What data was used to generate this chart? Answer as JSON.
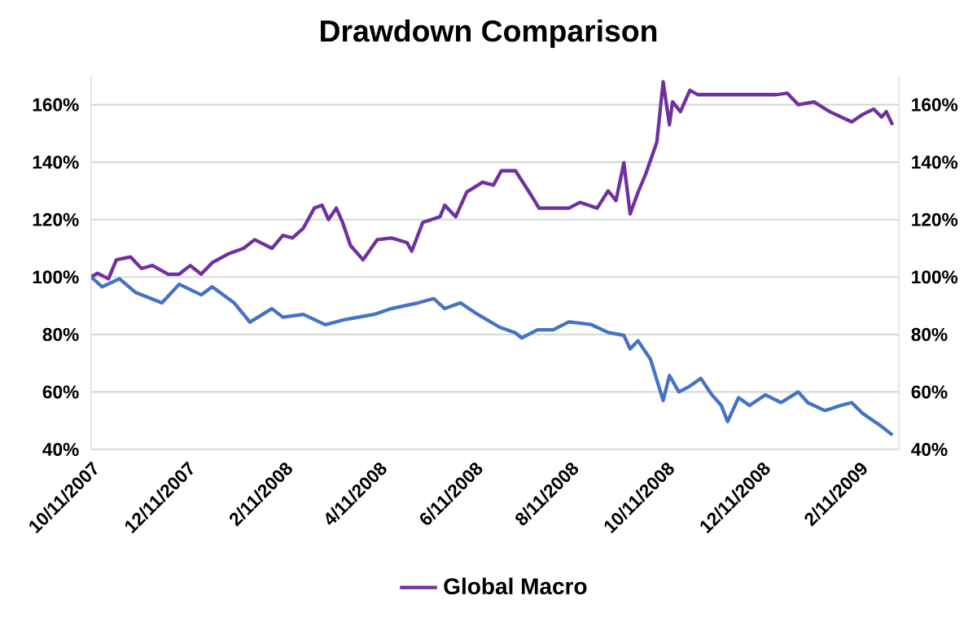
{
  "chart_data": {
    "type": "line",
    "title": "Drawdown Comparison",
    "xlim": [
      "2007-10-11",
      "2009-03-08"
    ],
    "xticks": [
      {
        "value": "2007-10-11",
        "label": "10/11/2007"
      },
      {
        "value": "2007-12-11",
        "label": "12/11/2007"
      },
      {
        "value": "2008-02-11",
        "label": "2/11/2008"
      },
      {
        "value": "2008-04-11",
        "label": "4/11/2008"
      },
      {
        "value": "2008-06-11",
        "label": "6/11/2008"
      },
      {
        "value": "2008-08-11",
        "label": "8/11/2008"
      },
      {
        "value": "2008-10-11",
        "label": "10/11/2008"
      },
      {
        "value": "2008-12-11",
        "label": "12/11/2008"
      },
      {
        "value": "2009-02-11",
        "label": "2/11/2009"
      }
    ],
    "ylim": [
      40,
      170
    ],
    "y2lim": [
      40,
      170
    ],
    "yticks": [
      {
        "value": 40,
        "label": "40%"
      },
      {
        "value": 60,
        "label": "60%"
      },
      {
        "value": 80,
        "label": "80%"
      },
      {
        "value": 100,
        "label": "100%"
      },
      {
        "value": 120,
        "label": "120%"
      },
      {
        "value": 140,
        "label": "140%"
      },
      {
        "value": 160,
        "label": "160%"
      }
    ],
    "y2ticks": [
      {
        "value": 40,
        "label": "40%"
      },
      {
        "value": 60,
        "label": "60%"
      },
      {
        "value": 80,
        "label": "80%"
      },
      {
        "value": 100,
        "label": "100%"
      },
      {
        "value": 120,
        "label": "120%"
      },
      {
        "value": 140,
        "label": "140%"
      },
      {
        "value": 160,
        "label": "160%"
      }
    ],
    "grid": "y",
    "legend": "bottom",
    "marker": "none",
    "line_style": "solid",
    "series": [
      {
        "name": "Global Macro",
        "color": "#7030a0",
        "x": [
          "2007-10-11",
          "2007-10-15",
          "2007-10-22",
          "2007-10-27",
          "2007-11-05",
          "2007-11-12",
          "2007-11-19",
          "2007-11-29",
          "2007-12-06",
          "2007-12-13",
          "2007-12-20",
          "2007-12-27",
          "2008-01-06",
          "2008-01-16",
          "2008-01-23",
          "2008-02-03",
          "2008-02-10",
          "2008-02-16",
          "2008-02-23",
          "2008-03-01",
          "2008-03-06",
          "2008-03-10",
          "2008-03-15",
          "2008-03-19",
          "2008-03-24",
          "2008-04-01",
          "2008-04-10",
          "2008-04-19",
          "2008-04-29",
          "2008-05-02",
          "2008-05-09",
          "2008-05-20",
          "2008-05-23",
          "2008-05-30",
          "2008-06-06",
          "2008-06-16",
          "2008-06-23",
          "2008-06-28",
          "2008-07-07",
          "2008-07-17",
          "2008-07-22",
          "2008-07-31",
          "2008-08-10",
          "2008-08-17",
          "2008-08-28",
          "2008-09-04",
          "2008-09-09",
          "2008-09-14",
          "2008-09-18",
          "2008-09-23",
          "2008-09-28",
          "2008-10-05",
          "2008-10-09",
          "2008-10-13",
          "2008-10-15",
          "2008-10-20",
          "2008-10-26",
          "2008-10-31",
          "2008-12-20",
          "2008-12-27",
          "2009-01-03",
          "2009-01-13",
          "2009-01-23",
          "2009-02-06",
          "2009-02-13",
          "2009-02-20",
          "2009-02-25",
          "2009-02-28",
          "2009-03-04"
        ],
        "values": [
          100,
          101.3,
          99.4,
          106,
          107,
          103,
          104,
          101,
          101,
          104,
          101,
          105,
          108,
          110,
          113,
          110,
          114.5,
          113.6,
          117,
          124,
          125,
          120,
          124,
          119,
          111,
          106,
          113,
          113.6,
          112,
          109,
          119,
          121,
          125,
          121,
          129.6,
          133,
          132,
          137,
          137,
          128.5,
          124,
          124,
          124,
          126,
          124,
          130,
          126.6,
          139.8,
          122,
          129.5,
          136,
          147,
          168,
          153,
          161,
          157.6,
          165,
          163.5,
          163.5,
          164,
          160,
          161,
          157.6,
          154,
          156.6,
          158.5,
          155.7,
          157.6,
          153
        ]
      },
      {
        "color": "#4472c4",
        "x": [
          "2007-10-11",
          "2007-10-18",
          "2007-10-29",
          "2007-11-08",
          "2007-11-25",
          "2007-12-06",
          "2007-12-20",
          "2007-12-27",
          "2008-01-10",
          "2008-01-20",
          "2008-02-03",
          "2008-02-10",
          "2008-02-23",
          "2008-03-08",
          "2008-03-19",
          "2008-03-29",
          "2008-04-08",
          "2008-04-19",
          "2008-05-06",
          "2008-05-16",
          "2008-05-23",
          "2008-06-02",
          "2008-06-13",
          "2008-06-27",
          "2008-07-07",
          "2008-07-11",
          "2008-07-21",
          "2008-07-31",
          "2008-08-10",
          "2008-08-24",
          "2008-09-04",
          "2008-09-14",
          "2008-09-18",
          "2008-09-23",
          "2008-10-01",
          "2008-10-09",
          "2008-10-13",
          "2008-10-19",
          "2008-10-26",
          "2008-11-02",
          "2008-11-09",
          "2008-11-15",
          "2008-11-19",
          "2008-11-26",
          "2008-12-03",
          "2008-12-13",
          "2008-12-23",
          "2009-01-03",
          "2009-01-09",
          "2009-01-20",
          "2009-01-30",
          "2009-02-06",
          "2009-02-13",
          "2009-02-23",
          "2009-03-04"
        ],
        "values": [
          100,
          96.6,
          99.4,
          94.7,
          91,
          97.5,
          93.8,
          96.6,
          91,
          84.3,
          89,
          86,
          87,
          83.4,
          85,
          86,
          87,
          89,
          91,
          92.5,
          89,
          91,
          87,
          82.5,
          80.6,
          78.8,
          81.6,
          81.6,
          84.4,
          83.5,
          80.7,
          79.7,
          75,
          77.8,
          71.3,
          57,
          65.7,
          60,
          62,
          64.7,
          59,
          55.3,
          49.7,
          58,
          55.3,
          59,
          56.3,
          60,
          56.3,
          53.5,
          55.3,
          56.3,
          52.5,
          48.8,
          45
        ]
      }
    ]
  }
}
